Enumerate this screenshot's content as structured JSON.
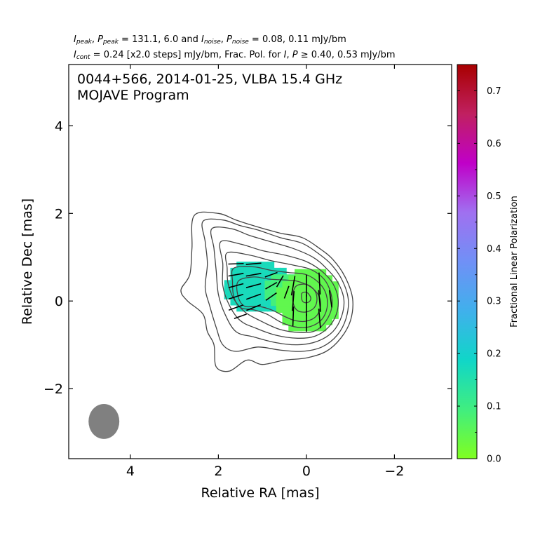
{
  "header": {
    "line1_parts": [
      {
        "t": "I",
        "i": true
      },
      {
        "t": "peak",
        "sub": true,
        "i": true
      },
      {
        "t": ", "
      },
      {
        "t": "P",
        "i": true
      },
      {
        "t": "peak",
        "sub": true,
        "i": true
      },
      {
        "t": " = 131.1, 6.0 and "
      },
      {
        "t": "I",
        "i": true
      },
      {
        "t": "noise",
        "sub": true,
        "i": true
      },
      {
        "t": ", "
      },
      {
        "t": "P",
        "i": true
      },
      {
        "t": "noise",
        "sub": true,
        "i": true
      },
      {
        "t": " = 0.08, 0.11 mJy/bm"
      }
    ],
    "line2_parts": [
      {
        "t": "I",
        "i": true
      },
      {
        "t": "cont",
        "sub": true,
        "i": true
      },
      {
        "t": " = 0.24 [x2.0 steps] mJy/bm, Frac. Pol. for "
      },
      {
        "t": "I",
        "i": true
      },
      {
        "t": ", "
      },
      {
        "t": "P",
        "i": true
      },
      {
        "t": " ≥ 0.40, 0.53 mJy/bm"
      }
    ]
  },
  "chart_data": {
    "type": "contour",
    "title_line1": "0044+566, 2014-01-25, VLBA 15.4 GHz",
    "title_line2": "MOJAVE Program",
    "xlabel": "Relative RA [mas]",
    "ylabel": "Relative Dec [mas]",
    "xlim": [
      5.4,
      -3.3
    ],
    "ylim": [
      -3.6,
      5.4
    ],
    "xticks": [
      4,
      2,
      0,
      -2
    ],
    "xtick_labels": [
      "4",
      "2",
      "0",
      "−2"
    ],
    "yticks": [
      4,
      2,
      0,
      -2
    ],
    "ytick_labels": [
      "4",
      "2",
      "0",
      "−2"
    ],
    "grid": false,
    "colorbar": {
      "label": "Fractional Linear Polarization",
      "ticks": [
        0.0,
        0.1,
        0.2,
        0.3,
        0.4,
        0.5,
        0.6,
        0.7
      ],
      "tick_labels": [
        "0.0",
        "0.1",
        "0.2",
        "0.3",
        "0.4",
        "0.5",
        "0.6",
        "0.7"
      ],
      "range": [
        0.0,
        0.75
      ],
      "colors": [
        "#80ff20",
        "#40ee80",
        "#10d6c8",
        "#40b0ec",
        "#7090f6",
        "#a070f0",
        "#c000c8",
        "#c02060",
        "#a80000"
      ]
    },
    "beam": {
      "x": 4.6,
      "y": -2.75,
      "major_mas": 0.8,
      "minor_mas": 0.7
    },
    "contour_colors": {
      "contour": "#444444",
      "evpa": "#000000",
      "beam": "#808080"
    },
    "core": {
      "ra": 0.0,
      "dec": 0.1
    },
    "contours": [
      [
        [
          2.55,
          1.95
        ],
        [
          2.0,
          2.0
        ],
        [
          1.6,
          1.85
        ],
        [
          1.2,
          1.72
        ],
        [
          0.6,
          1.55
        ],
        [
          0.1,
          1.45
        ],
        [
          -0.3,
          1.2
        ],
        [
          -0.6,
          0.95
        ],
        [
          -0.88,
          0.55
        ],
        [
          -1.05,
          0.05
        ],
        [
          -1.0,
          -0.45
        ],
        [
          -0.78,
          -0.85
        ],
        [
          -0.45,
          -1.15
        ],
        [
          0.0,
          -1.3
        ],
        [
          0.5,
          -1.35
        ],
        [
          1.0,
          -1.45
        ],
        [
          1.35,
          -1.35
        ],
        [
          1.75,
          -1.6
        ],
        [
          2.05,
          -1.5
        ],
        [
          2.1,
          -1.0
        ],
        [
          2.25,
          -0.7
        ],
        [
          2.35,
          -0.3
        ],
        [
          2.7,
          0.0
        ],
        [
          2.85,
          0.25
        ],
        [
          2.65,
          0.6
        ],
        [
          2.6,
          1.2
        ]
      ],
      [
        [
          2.35,
          1.82
        ],
        [
          1.9,
          1.85
        ],
        [
          1.5,
          1.72
        ],
        [
          1.1,
          1.62
        ],
        [
          0.6,
          1.45
        ],
        [
          0.1,
          1.32
        ],
        [
          -0.25,
          1.1
        ],
        [
          -0.55,
          0.85
        ],
        [
          -0.8,
          0.5
        ],
        [
          -0.95,
          0.05
        ],
        [
          -0.9,
          -0.4
        ],
        [
          -0.7,
          -0.78
        ],
        [
          -0.35,
          -1.05
        ],
        [
          0.1,
          -1.15
        ],
        [
          0.6,
          -1.12
        ],
        [
          1.1,
          -1.05
        ],
        [
          1.6,
          -1.15
        ],
        [
          1.9,
          -1.0
        ],
        [
          2.05,
          -0.6
        ],
        [
          2.2,
          -0.1
        ],
        [
          2.3,
          0.3
        ],
        [
          2.25,
          0.85
        ],
        [
          2.3,
          1.35
        ]
      ],
      [
        [
          2.15,
          1.65
        ],
        [
          1.7,
          1.65
        ],
        [
          1.3,
          1.5
        ],
        [
          0.8,
          1.35
        ],
        [
          0.3,
          1.2
        ],
        [
          -0.15,
          1.0
        ],
        [
          -0.45,
          0.75
        ],
        [
          -0.7,
          0.45
        ],
        [
          -0.85,
          0.05
        ],
        [
          -0.8,
          -0.35
        ],
        [
          -0.6,
          -0.7
        ],
        [
          -0.25,
          -0.92
        ],
        [
          0.2,
          -1.0
        ],
        [
          0.7,
          -0.95
        ],
        [
          1.2,
          -0.82
        ],
        [
          1.6,
          -0.7
        ],
        [
          1.85,
          -0.3
        ],
        [
          2.0,
          0.15
        ],
        [
          2.05,
          0.7
        ],
        [
          2.1,
          1.2
        ]
      ],
      [
        [
          1.95,
          1.35
        ],
        [
          1.5,
          1.3
        ],
        [
          1.0,
          1.15
        ],
        [
          0.5,
          1.05
        ],
        [
          0.0,
          0.9
        ],
        [
          -0.35,
          0.68
        ],
        [
          -0.6,
          0.4
        ],
        [
          -0.72,
          0.05
        ],
        [
          -0.68,
          -0.3
        ],
        [
          -0.5,
          -0.6
        ],
        [
          -0.2,
          -0.8
        ],
        [
          0.2,
          -0.85
        ],
        [
          0.7,
          -0.78
        ],
        [
          1.15,
          -0.62
        ],
        [
          1.5,
          -0.45
        ],
        [
          1.75,
          -0.1
        ],
        [
          1.9,
          0.35
        ],
        [
          1.9,
          0.85
        ]
      ],
      [
        [
          1.8,
          1.1
        ],
        [
          1.3,
          1.05
        ],
        [
          0.8,
          0.92
        ],
        [
          0.3,
          0.82
        ],
        [
          -0.1,
          0.72
        ],
        [
          -0.4,
          0.5
        ],
        [
          -0.55,
          0.2
        ],
        [
          -0.58,
          -0.12
        ],
        [
          -0.45,
          -0.45
        ],
        [
          -0.2,
          -0.68
        ],
        [
          0.15,
          -0.72
        ],
        [
          0.6,
          -0.65
        ],
        [
          1.05,
          -0.45
        ],
        [
          1.4,
          -0.25
        ],
        [
          1.65,
          0.05
        ],
        [
          1.78,
          0.4
        ],
        [
          1.8,
          0.75
        ]
      ],
      [
        [
          1.65,
          0.75
        ],
        [
          1.2,
          0.78
        ],
        [
          0.8,
          0.7
        ],
        [
          0.4,
          0.65
        ],
        [
          0.0,
          0.6
        ],
        [
          -0.3,
          0.4
        ],
        [
          -0.45,
          0.15
        ],
        [
          -0.47,
          -0.15
        ],
        [
          -0.35,
          -0.42
        ],
        [
          -0.1,
          -0.58
        ],
        [
          0.2,
          -0.6
        ],
        [
          0.55,
          -0.5
        ],
        [
          0.9,
          -0.3
        ],
        [
          1.2,
          -0.2
        ],
        [
          1.5,
          -0.15
        ],
        [
          1.65,
          0.1
        ],
        [
          1.68,
          0.45
        ]
      ],
      [
        [
          1.55,
          0.45
        ],
        [
          1.2,
          0.55
        ],
        [
          0.85,
          0.5
        ],
        [
          0.5,
          0.48
        ],
        [
          0.2,
          0.45
        ],
        [
          -0.1,
          0.32
        ],
        [
          -0.28,
          0.12
        ],
        [
          -0.32,
          -0.12
        ],
        [
          -0.22,
          -0.35
        ],
        [
          0.0,
          -0.46
        ],
        [
          0.25,
          -0.45
        ],
        [
          0.5,
          -0.35
        ],
        [
          0.8,
          -0.2
        ],
        [
          1.1,
          -0.12
        ],
        [
          1.4,
          -0.12
        ],
        [
          1.55,
          0.1
        ]
      ],
      [
        [
          0.22,
          0.35
        ],
        [
          0.0,
          0.38
        ],
        [
          -0.18,
          0.25
        ],
        [
          -0.24,
          0.05
        ],
        [
          -0.18,
          -0.15
        ],
        [
          0.0,
          -0.25
        ],
        [
          0.2,
          -0.22
        ],
        [
          0.3,
          -0.05
        ],
        [
          0.3,
          0.2
        ]
      ],
      [
        [
          0.1,
          0.18
        ],
        [
          0.0,
          0.2
        ],
        [
          -0.08,
          0.12
        ],
        [
          -0.1,
          0.05
        ],
        [
          -0.06,
          -0.02
        ],
        [
          0.02,
          -0.04
        ],
        [
          0.09,
          0.0
        ],
        [
          0.11,
          0.09
        ]
      ]
    ],
    "pol_regions": [
      {
        "ra": 1.18,
        "dec": 0.32,
        "rx": 0.72,
        "ry": 0.62,
        "frac": 0.17
      },
      {
        "ra": 0.55,
        "dec": 0.25,
        "rx": 0.45,
        "ry": 0.42,
        "frac": 0.09
      },
      {
        "ra": 0.0,
        "dec": 0.0,
        "rx": 0.72,
        "ry": 0.75,
        "frac": 0.045
      }
    ],
    "evpa_vectors": [
      {
        "ra": 1.6,
        "dec": 0.85,
        "len": 0.35,
        "pa": 92
      },
      {
        "ra": 1.2,
        "dec": 0.85,
        "len": 0.35,
        "pa": 95
      },
      {
        "ra": 1.6,
        "dec": 0.6,
        "len": 0.35,
        "pa": 100
      },
      {
        "ra": 1.2,
        "dec": 0.6,
        "len": 0.35,
        "pa": 100
      },
      {
        "ra": 0.8,
        "dec": 0.6,
        "len": 0.3,
        "pa": 110
      },
      {
        "ra": 1.6,
        "dec": 0.35,
        "len": 0.35,
        "pa": 105
      },
      {
        "ra": 1.2,
        "dec": 0.35,
        "len": 0.35,
        "pa": 105
      },
      {
        "ra": 0.8,
        "dec": 0.35,
        "len": 0.3,
        "pa": 120
      },
      {
        "ra": 1.6,
        "dec": 0.1,
        "len": 0.35,
        "pa": 108
      },
      {
        "ra": 1.2,
        "dec": 0.1,
        "len": 0.35,
        "pa": 110
      },
      {
        "ra": 0.8,
        "dec": 0.1,
        "len": 0.3,
        "pa": 125
      },
      {
        "ra": 1.6,
        "dec": -0.15,
        "len": 0.35,
        "pa": 110
      },
      {
        "ra": 1.2,
        "dec": -0.15,
        "len": 0.35,
        "pa": 112
      },
      {
        "ra": 1.5,
        "dec": -0.35,
        "len": 0.3,
        "pa": 110
      },
      {
        "ra": 0.6,
        "dec": 0.45,
        "len": 0.3,
        "pa": 150
      },
      {
        "ra": 0.45,
        "dec": 0.2,
        "len": 0.3,
        "pa": 160
      },
      {
        "ra": 0.3,
        "dec": 0.35,
        "len": 0.45,
        "pa": 170
      },
      {
        "ra": 0.3,
        "dec": 0.0,
        "len": 0.45,
        "pa": 175
      },
      {
        "ra": 0.3,
        "dec": -0.35,
        "len": 0.45,
        "pa": 178
      },
      {
        "ra": 0.0,
        "dec": 0.35,
        "len": 0.5,
        "pa": 180
      },
      {
        "ra": 0.0,
        "dec": -0.1,
        "len": 0.5,
        "pa": 180
      },
      {
        "ra": 0.0,
        "dec": -0.5,
        "len": 0.4,
        "pa": 180
      },
      {
        "ra": -0.3,
        "dec": 0.4,
        "len": 0.5,
        "pa": 3
      },
      {
        "ra": -0.3,
        "dec": 0.0,
        "len": 0.5,
        "pa": 5
      },
      {
        "ra": -0.3,
        "dec": -0.4,
        "len": 0.45,
        "pa": 5
      },
      {
        "ra": -0.55,
        "dec": 0.05,
        "len": 0.4,
        "pa": 8
      }
    ]
  }
}
